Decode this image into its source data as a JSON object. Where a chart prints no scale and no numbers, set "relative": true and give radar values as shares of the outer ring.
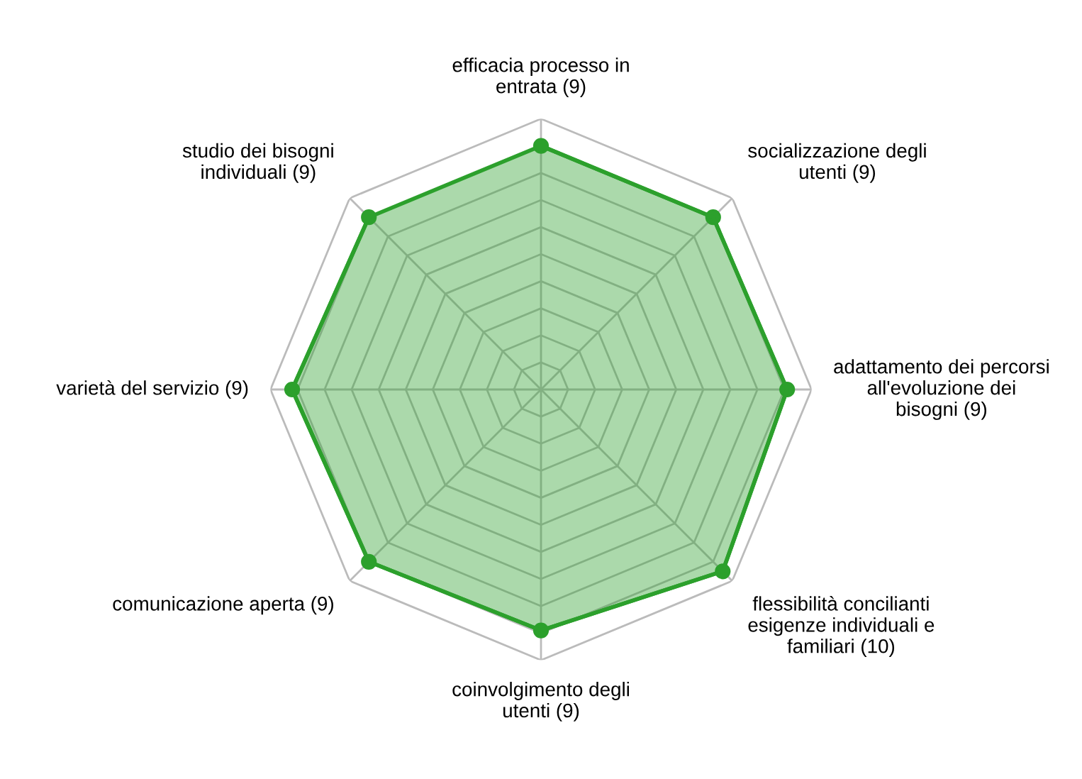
{
  "chart_data": {
    "type": "radar",
    "relative": true,
    "categories": [
      "efficacia processo in\nentrata (9)",
      "socializzazione degli\nutenti (9)",
      "adattamento dei percorsi\nall'evoluzione dei\nbisogni (9)",
      "flessibilità concilianti\nesigenze individuali e\nfamiliari (10)",
      "coinvolgimento degli\nutenti (9)",
      "comunicazione aperta (9)",
      "varietà del servizio (9)",
      "studio dei bisogni\nindividuali (9)"
    ],
    "series": [
      {
        "color": "#2ca02c",
        "values": [
          0.9,
          0.9,
          0.91,
          0.95,
          0.89,
          0.9,
          0.92,
          0.9
        ]
      }
    ],
    "marker": "circle",
    "grid": true
  }
}
